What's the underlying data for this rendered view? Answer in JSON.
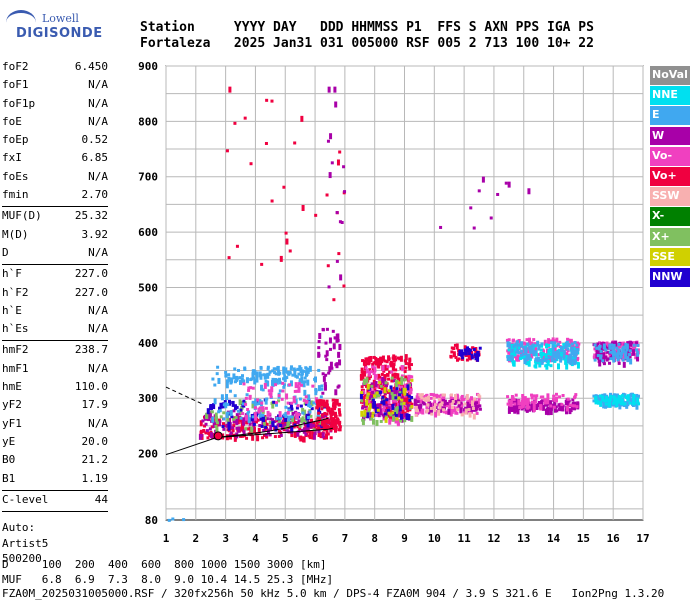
{
  "logo": {
    "line1": "Lowell",
    "line2": "DIGISONDE"
  },
  "header": {
    "labels": [
      "Station",
      "YYYY",
      "DAY",
      "DDD",
      "HHMMSS",
      "P1",
      "FFS",
      "S",
      "AXN",
      "PPS",
      "IGA",
      "PS"
    ],
    "values": [
      "Fortaleza",
      "2025",
      "Jan31",
      "031",
      "005000",
      "RSF",
      "005",
      "2",
      "713",
      "100",
      "10+",
      "22"
    ]
  },
  "params": {
    "group1": [
      {
        "label": "foF2",
        "value": "6.450"
      },
      {
        "label": "foF1",
        "value": "N/A"
      },
      {
        "label": "foF1p",
        "value": "N/A"
      },
      {
        "label": "foE",
        "value": "N/A"
      },
      {
        "label": "foEp",
        "value": "0.52"
      },
      {
        "label": "fxI",
        "value": "6.85"
      },
      {
        "label": "foEs",
        "value": "N/A"
      },
      {
        "label": "fmin",
        "value": "2.70"
      }
    ],
    "group2": [
      {
        "label": "MUF(D)",
        "value": "25.32"
      },
      {
        "label": "M(D)",
        "value": "3.92"
      },
      {
        "label": "D",
        "value": "N/A"
      }
    ],
    "group3": [
      {
        "label": "h`F",
        "value": "227.0"
      },
      {
        "label": "h`F2",
        "value": "227.0"
      },
      {
        "label": "h`E",
        "value": "N/A"
      },
      {
        "label": "h`Es",
        "value": "N/A"
      }
    ],
    "group4": [
      {
        "label": "hmF2",
        "value": "238.7"
      },
      {
        "label": "hmF1",
        "value": "N/A"
      },
      {
        "label": "hmE",
        "value": "110.0"
      },
      {
        "label": "yF2",
        "value": "17.9"
      },
      {
        "label": "yF1",
        "value": "N/A"
      },
      {
        "label": "yE",
        "value": "20.0"
      },
      {
        "label": "B0",
        "value": "21.2"
      },
      {
        "label": "B1",
        "value": "1.19"
      }
    ],
    "group5": [
      {
        "label": "C-level",
        "value": "44"
      }
    ],
    "auto": [
      "Auto:",
      "Artist5",
      "500200"
    ]
  },
  "legend": [
    {
      "label": "NoVal",
      "color": "#909090"
    },
    {
      "label": "NNE",
      "color": "#00e0f0"
    },
    {
      "label": "E",
      "color": "#40a8f0"
    },
    {
      "label": "W",
      "color": "#a800a8"
    },
    {
      "label": "Vo-",
      "color": "#f040c0"
    },
    {
      "label": "Vo+",
      "color": "#f00040"
    },
    {
      "label": "SSW",
      "color": "#f8b0b0"
    },
    {
      "label": "X-",
      "color": "#008000"
    },
    {
      "label": "X+",
      "color": "#80c060"
    },
    {
      "label": "SSE",
      "color": "#d0d000"
    },
    {
      "label": "NNW",
      "color": "#2000d0"
    }
  ],
  "footer": {
    "d_line": "D     100  200  400  600  800 1000 1500 3000 [km]",
    "muf_line": "MUF   6.8  6.9  7.3  8.0  9.0 10.4 14.5 25.3 [MHz]",
    "file_line": "FZA0M_2025031005000.RSF / 320fx256h 50 kHz 5.0 km / DPS-4 FZA0M 904 / 3.9 S 321.6 E   Ion2Png 1.3.20"
  },
  "chart_data": {
    "type": "scatter",
    "xlim": [
      1,
      17
    ],
    "ylim": [
      80,
      900
    ],
    "x_ticks": [
      "1",
      "2",
      "3",
      "4",
      "5",
      "6",
      "7",
      "8",
      "9",
      "10",
      "11",
      "12",
      "13",
      "14",
      "15",
      "16",
      "17"
    ],
    "y_ticks": [
      "80",
      "200",
      "300",
      "400",
      "500",
      "600",
      "700",
      "800",
      "900"
    ],
    "grid": true,
    "trace": {
      "x": [
        1.0,
        2.7,
        3.0,
        3.5,
        4.0,
        4.5,
        5.0,
        5.5,
        6.0,
        6.2,
        6.45
      ],
      "y": [
        198,
        229,
        231,
        234,
        237,
        241,
        246,
        252,
        258,
        260,
        264
      ]
    },
    "trace_lower": {
      "x": [
        2.7,
        4.0,
        5.0,
        6.0,
        6.45,
        6.6
      ],
      "y": [
        229,
        234,
        238,
        242,
        244,
        246
      ]
    },
    "trace_dashed": {
      "x": [
        1.0,
        1.6,
        2.2
      ],
      "y": [
        320,
        305,
        290
      ]
    },
    "marker": {
      "x": 2.75,
      "y": 232
    },
    "clusters": [
      {
        "x0": 2.1,
        "x1": 6.6,
        "y0": 230,
        "y1": 270,
        "color": "#f00040",
        "n": 220
      },
      {
        "x0": 2.1,
        "x1": 6.6,
        "y0": 235,
        "y1": 280,
        "color": "#a800a8",
        "n": 120
      },
      {
        "x0": 2.3,
        "x1": 6.4,
        "y0": 245,
        "y1": 300,
        "color": "#80c060",
        "n": 60
      },
      {
        "x0": 2.3,
        "x1": 6.4,
        "y0": 250,
        "y1": 300,
        "color": "#2000d0",
        "n": 70
      },
      {
        "x0": 2.5,
        "x1": 6.2,
        "y0": 265,
        "y1": 360,
        "color": "#40a8f0",
        "n": 120
      },
      {
        "x0": 3.0,
        "x1": 6.0,
        "y0": 330,
        "y1": 360,
        "color": "#40a8f0",
        "n": 80
      },
      {
        "x0": 3.5,
        "x1": 6.0,
        "y0": 270,
        "y1": 330,
        "color": "#f040c0",
        "n": 60
      },
      {
        "x0": 6.0,
        "x1": 6.8,
        "y0": 245,
        "y1": 300,
        "color": "#f00040",
        "n": 90
      },
      {
        "x0": 6.0,
        "x1": 6.8,
        "y0": 300,
        "y1": 430,
        "color": "#a800a8",
        "n": 40
      },
      {
        "x0": 7.5,
        "x1": 9.2,
        "y0": 270,
        "y1": 380,
        "color": "#f00040",
        "n": 260
      },
      {
        "x0": 7.5,
        "x1": 9.2,
        "y0": 260,
        "y1": 360,
        "color": "#f040c0",
        "n": 90
      },
      {
        "x0": 7.5,
        "x1": 9.2,
        "y0": 260,
        "y1": 340,
        "color": "#a800a8",
        "n": 70
      },
      {
        "x0": 7.5,
        "x1": 9.2,
        "y0": 260,
        "y1": 340,
        "color": "#80c060",
        "n": 50
      },
      {
        "x0": 7.5,
        "x1": 9.2,
        "y0": 270,
        "y1": 330,
        "color": "#2000d0",
        "n": 40
      },
      {
        "x0": 7.5,
        "x1": 9.2,
        "y0": 260,
        "y1": 340,
        "color": "#d0d000",
        "n": 30
      },
      {
        "x0": 9.3,
        "x1": 11.5,
        "y0": 275,
        "y1": 310,
        "color": "#f040c0",
        "n": 120
      },
      {
        "x0": 9.3,
        "x1": 11.5,
        "y0": 280,
        "y1": 300,
        "color": "#a800a8",
        "n": 60
      },
      {
        "x0": 9.3,
        "x1": 11.5,
        "y0": 270,
        "y1": 310,
        "color": "#f8b0b0",
        "n": 50
      },
      {
        "x0": 10.5,
        "x1": 11.5,
        "y0": 370,
        "y1": 400,
        "color": "#f00040",
        "n": 40
      },
      {
        "x0": 10.8,
        "x1": 11.5,
        "y0": 375,
        "y1": 395,
        "color": "#2000d0",
        "n": 25
      },
      {
        "x0": 12.4,
        "x1": 14.8,
        "y0": 370,
        "y1": 410,
        "color": "#f040c0",
        "n": 160
      },
      {
        "x0": 12.4,
        "x1": 14.8,
        "y0": 360,
        "y1": 400,
        "color": "#00e0f0",
        "n": 120
      },
      {
        "x0": 12.4,
        "x1": 14.8,
        "y0": 370,
        "y1": 405,
        "color": "#40a8f0",
        "n": 100
      },
      {
        "x0": 12.4,
        "x1": 14.8,
        "y0": 280,
        "y1": 300,
        "color": "#a800a8",
        "n": 120
      },
      {
        "x0": 12.4,
        "x1": 14.8,
        "y0": 285,
        "y1": 310,
        "color": "#f040c0",
        "n": 70
      },
      {
        "x0": 15.3,
        "x1": 16.8,
        "y0": 375,
        "y1": 405,
        "color": "#f040c0",
        "n": 100
      },
      {
        "x0": 15.3,
        "x1": 16.8,
        "y0": 365,
        "y1": 405,
        "color": "#a800a8",
        "n": 80
      },
      {
        "x0": 15.3,
        "x1": 16.8,
        "y0": 370,
        "y1": 400,
        "color": "#40a8f0",
        "n": 60
      },
      {
        "x0": 15.3,
        "x1": 16.8,
        "y0": 290,
        "y1": 310,
        "color": "#40a8f0",
        "n": 110
      },
      {
        "x0": 15.3,
        "x1": 16.8,
        "y0": 292,
        "y1": 308,
        "color": "#00e0f0",
        "n": 50
      },
      {
        "x0": 3.0,
        "x1": 7.0,
        "y0": 420,
        "y1": 870,
        "color": "#f00040",
        "n": 30
      },
      {
        "x0": 6.3,
        "x1": 7.0,
        "y0": 500,
        "y1": 870,
        "color": "#a800a8",
        "n": 15
      },
      {
        "x0": 9.5,
        "x1": 13.2,
        "y0": 600,
        "y1": 720,
        "color": "#a800a8",
        "n": 10
      },
      {
        "x0": 1.0,
        "x1": 2.0,
        "y0": 80,
        "y1": 85,
        "color": "#40a8f0",
        "n": 3
      }
    ]
  }
}
